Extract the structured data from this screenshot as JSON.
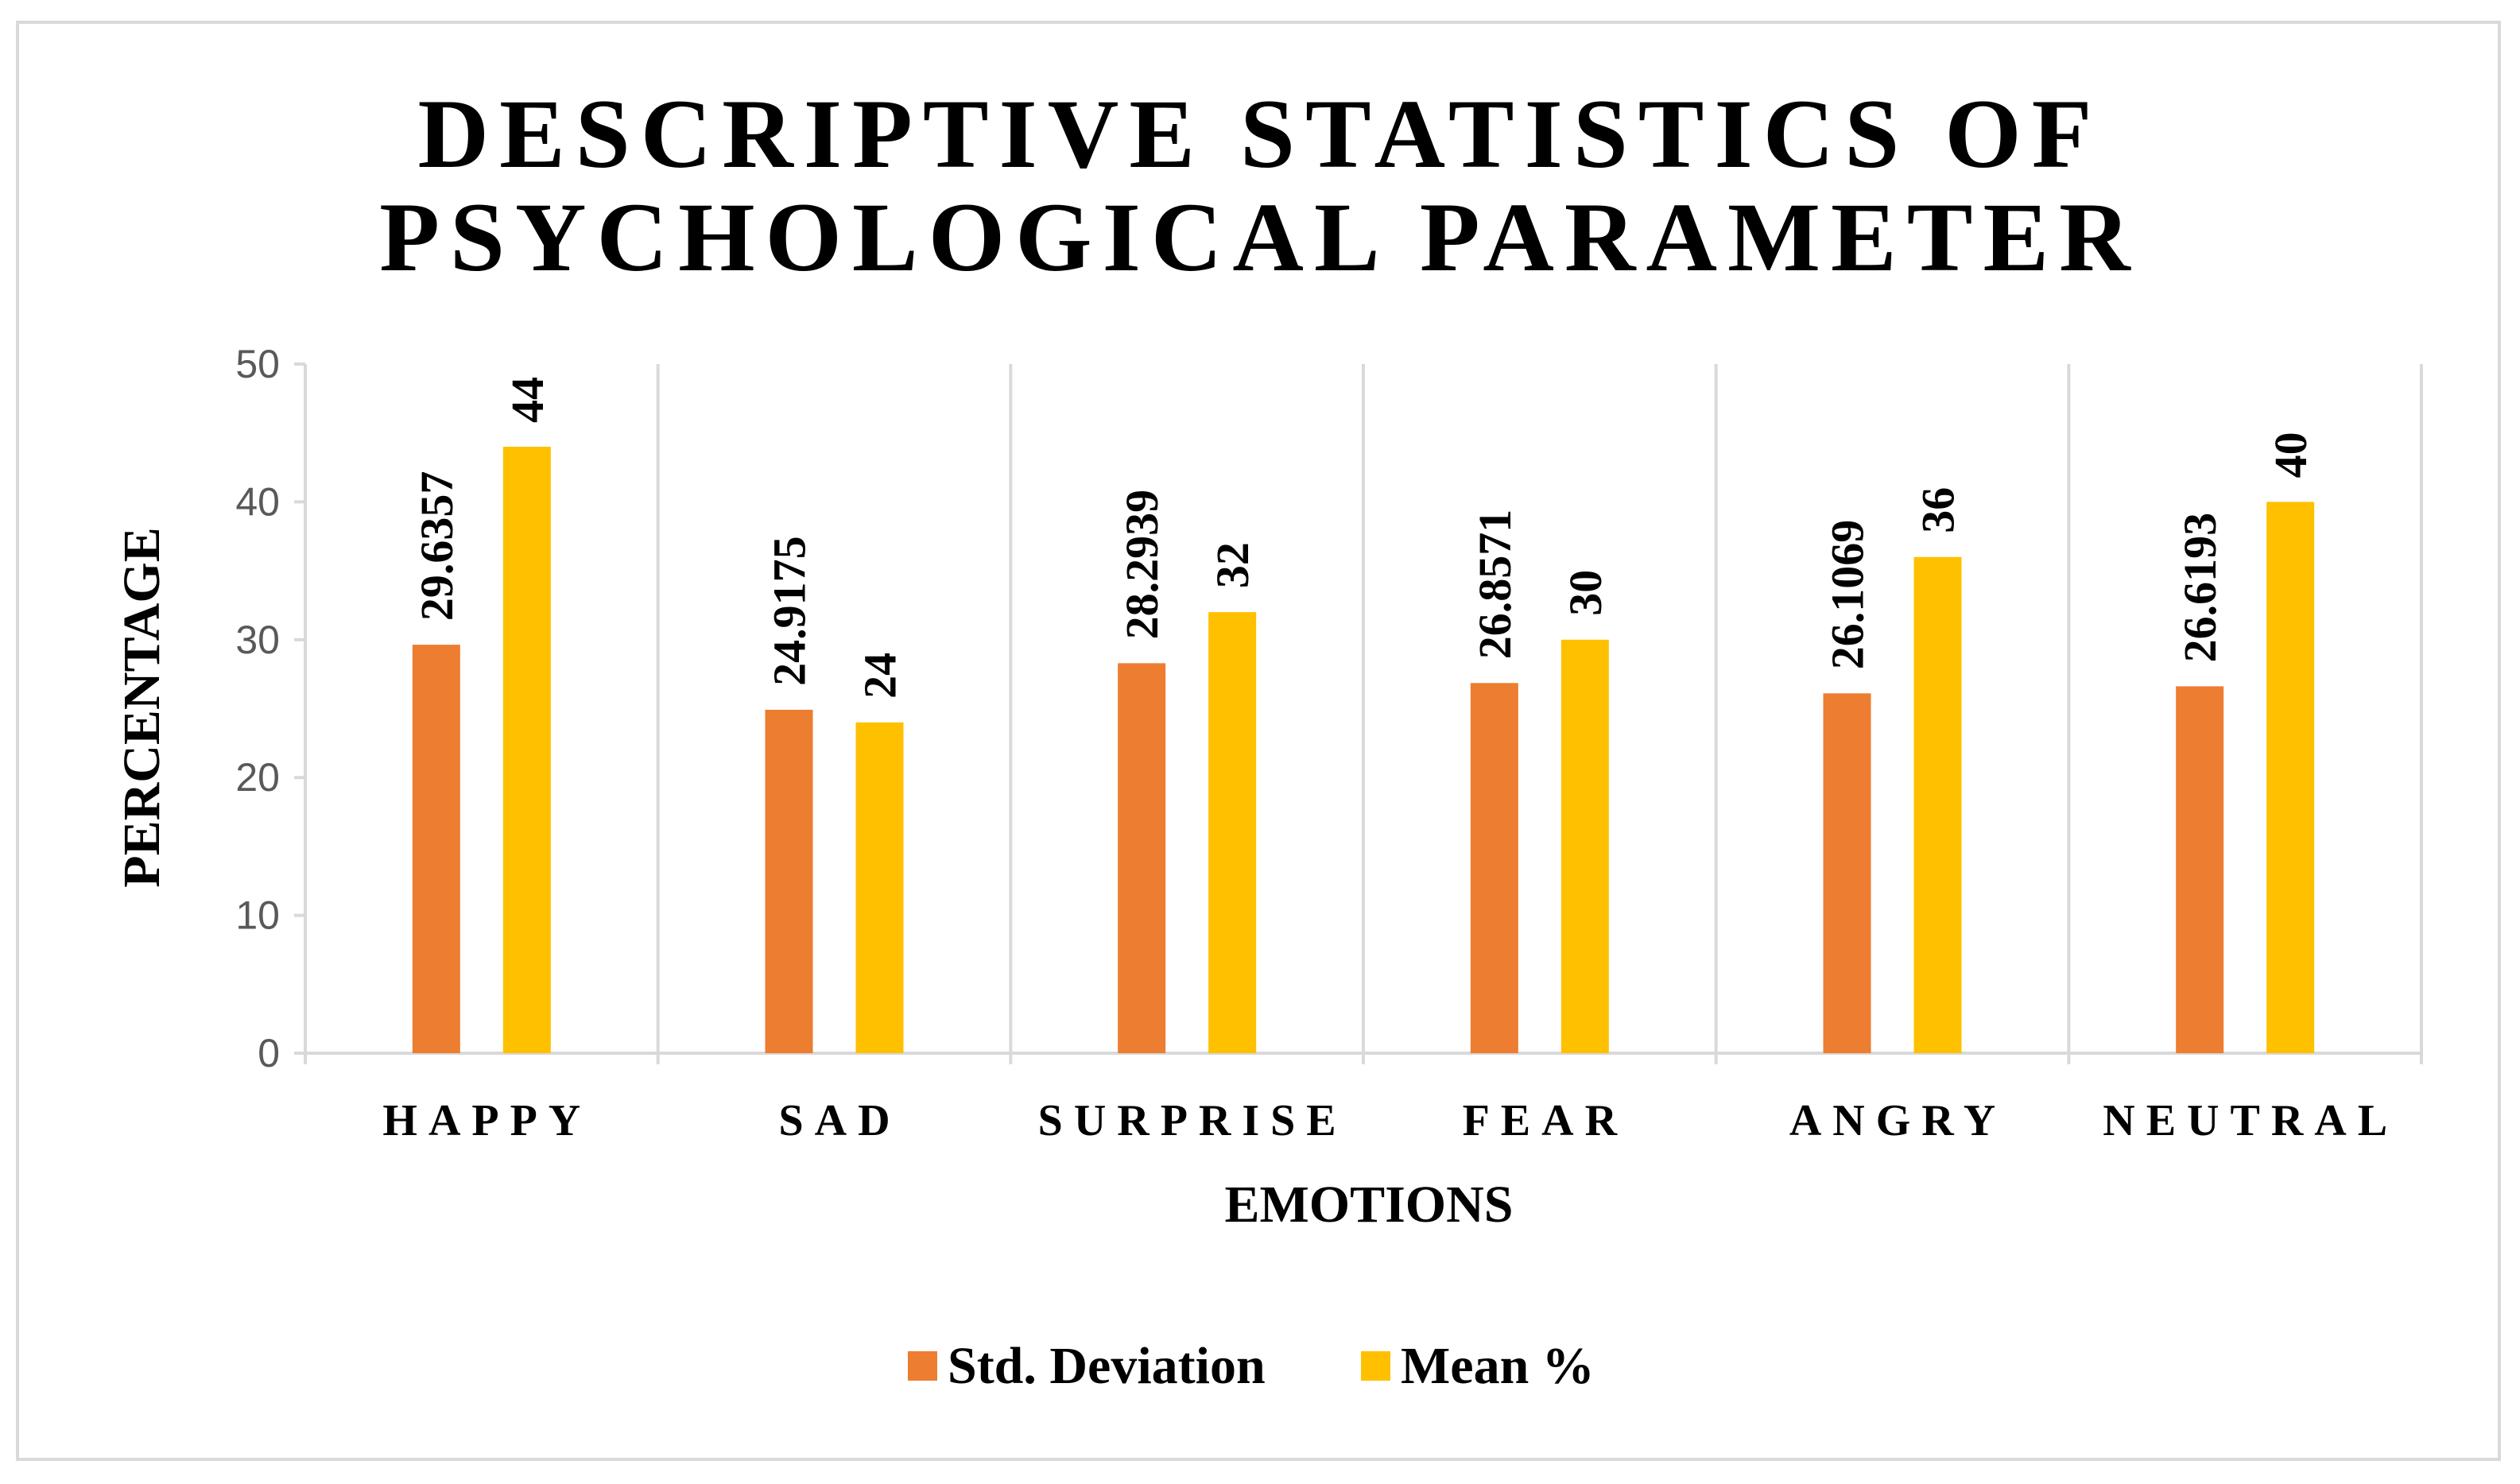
{
  "chart_data": {
    "type": "bar",
    "title_lines": [
      "DESCRIPTIVE STATISTICS OF",
      "PSYCHOLOGICAL PARAMETER"
    ],
    "xlabel": "EMOTIONS",
    "ylabel": "PERCENTAGE",
    "categories": [
      "HAPPY",
      "SAD",
      "SURPRISE",
      "FEAR",
      "ANGRY",
      "NEUTRAL"
    ],
    "ylim": [
      0,
      50
    ],
    "yticks": [
      0,
      10,
      20,
      30,
      40,
      50
    ],
    "grid": "vertical separators between categories",
    "legend_position": "bottom",
    "series": [
      {
        "name": "Std. Deviation",
        "color": "#ED7D31",
        "values": [
          29.6357,
          24.9175,
          28.2939,
          26.8571,
          26.1069,
          26.6193
        ],
        "labels": [
          "29.6357",
          "24.9175",
          "28.2939",
          "26.8571",
          "26.1069",
          "26.6193"
        ]
      },
      {
        "name": "Mean %",
        "color": "#FFC000",
        "values": [
          44,
          24,
          32,
          30,
          36,
          40
        ],
        "labels": [
          "44",
          "24",
          "32",
          "30",
          "36",
          "40"
        ]
      }
    ]
  }
}
